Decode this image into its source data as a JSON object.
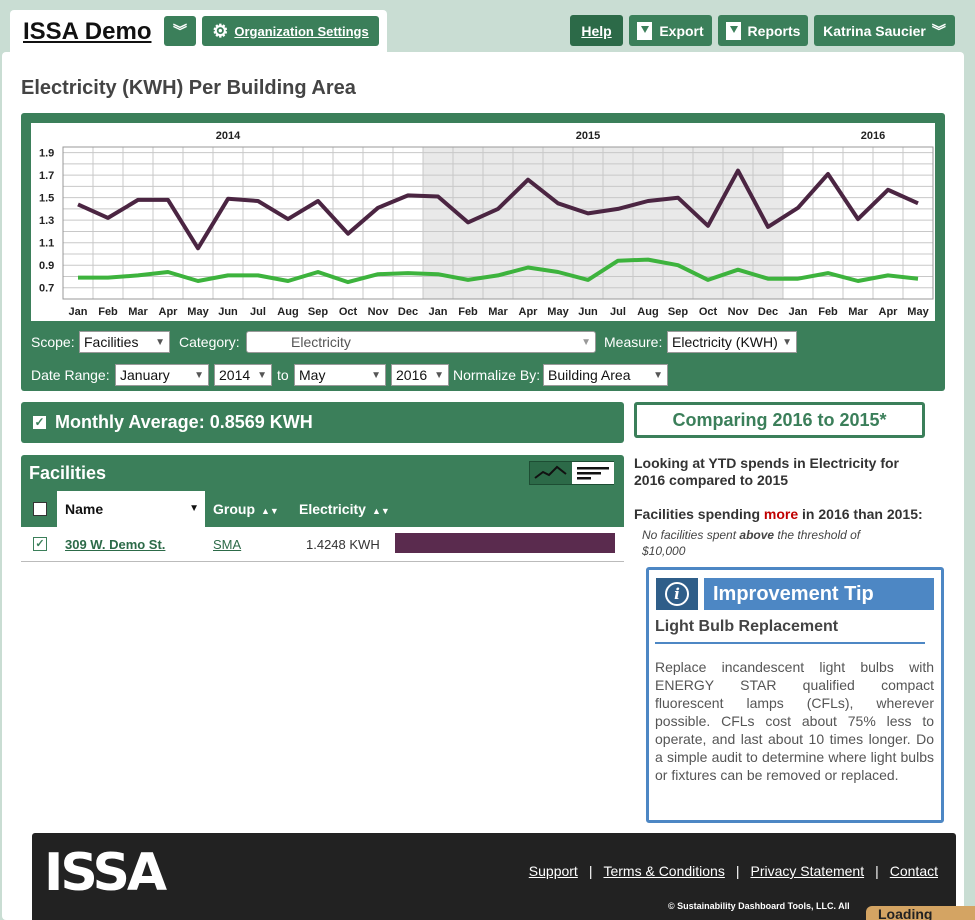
{
  "header": {
    "app_title": "ISSA Demo",
    "org_settings_label": "Organization Settings",
    "help_label": "Help",
    "export_label": "Export",
    "reports_label": "Reports",
    "user_name": "Katrina Saucier"
  },
  "page": {
    "title": "Electricity (KWH) Per Building Area"
  },
  "chart_data": {
    "type": "line",
    "year_labels": [
      "2014",
      "2015",
      "2016"
    ],
    "categories": [
      "Jan",
      "Feb",
      "Mar",
      "Apr",
      "May",
      "Jun",
      "Jul",
      "Aug",
      "Sep",
      "Oct",
      "Nov",
      "Dec",
      "Jan",
      "Feb",
      "Mar",
      "Apr",
      "May",
      "Jun",
      "Jul",
      "Aug",
      "Sep",
      "Oct",
      "Nov",
      "Dec",
      "Jan",
      "Feb",
      "Mar",
      "Apr",
      "May"
    ],
    "y_ticks": [
      "1.9",
      "1.7",
      "1.5",
      "1.3",
      "1.1",
      "0.9",
      "0.7"
    ],
    "ylim": [
      0.6,
      1.95
    ],
    "shaded_range": [
      12,
      23
    ],
    "grid": true,
    "series": [
      {
        "color": "#4b2542",
        "values": [
          1.44,
          1.32,
          1.48,
          1.48,
          1.05,
          1.49,
          1.47,
          1.31,
          1.47,
          1.18,
          1.41,
          1.52,
          1.51,
          1.28,
          1.4,
          1.66,
          1.45,
          1.36,
          1.4,
          1.47,
          1.5,
          1.25,
          1.74,
          1.24,
          1.41,
          1.71,
          1.31,
          1.57,
          1.45
        ]
      },
      {
        "color": "#3db33d",
        "values": [
          0.79,
          0.79,
          0.81,
          0.84,
          0.76,
          0.81,
          0.81,
          0.76,
          0.84,
          0.75,
          0.82,
          0.83,
          0.82,
          0.77,
          0.81,
          0.88,
          0.84,
          0.77,
          0.94,
          0.95,
          0.9,
          0.77,
          0.86,
          0.78,
          0.78,
          0.83,
          0.76,
          0.81,
          0.78
        ]
      }
    ]
  },
  "controls": {
    "scope_label": "Scope:",
    "scope_value": "Facilities",
    "category_label": "Category:",
    "category_value": "Electricity",
    "measure_label": "Measure:",
    "measure_value": "Electricity (KWH)",
    "date_range_label": "Date Range:",
    "start_month": "January",
    "start_year": "2014",
    "to_label": "to",
    "end_month": "May",
    "end_year": "2016",
    "normalize_label": "Normalize By:",
    "normalize_value": "Building Area"
  },
  "summary": {
    "monthly_average": "Monthly Average: 0.8569 KWH"
  },
  "facilities": {
    "title": "Facilities",
    "columns": [
      "Name",
      "Group",
      "Electricity"
    ],
    "rows": [
      {
        "name": "309 W. Demo St.",
        "group": "SMA",
        "electricity": "1.4248 KWH"
      }
    ]
  },
  "comparison": {
    "title": "Comparing 2016 to 2015*",
    "ytd_text": "Looking at YTD spends in Electricity for 2016 compared to 2015",
    "spend_prefix": "Facilities spending ",
    "spend_more": "more",
    "spend_suffix": " in 2016 than 2015:",
    "no_fac_prefix": "No facilities spent ",
    "no_fac_above": "above",
    "no_fac_suffix": " the threshold of $10,000"
  },
  "tip": {
    "icon_glyph": "i",
    "title": "Improvement Tip",
    "subtitle": "Light Bulb Replacement",
    "body": "Replace incandescent light bulbs with ENERGY STAR qualified compact fluorescent lamps (CFLs), wherever possible. CFLs cost about 75% less to operate, and last about 10 times longer. Do a simple audit to determine where light bulbs or fixtures can be removed or replaced."
  },
  "footer": {
    "logo_text": "ISSA",
    "links": [
      "Support",
      "Terms & Conditions",
      "Privacy Statement",
      "Contact"
    ],
    "copyright": "© Sustainability Dashboard Tools, LLC. All"
  },
  "loading_text": "Loading"
}
